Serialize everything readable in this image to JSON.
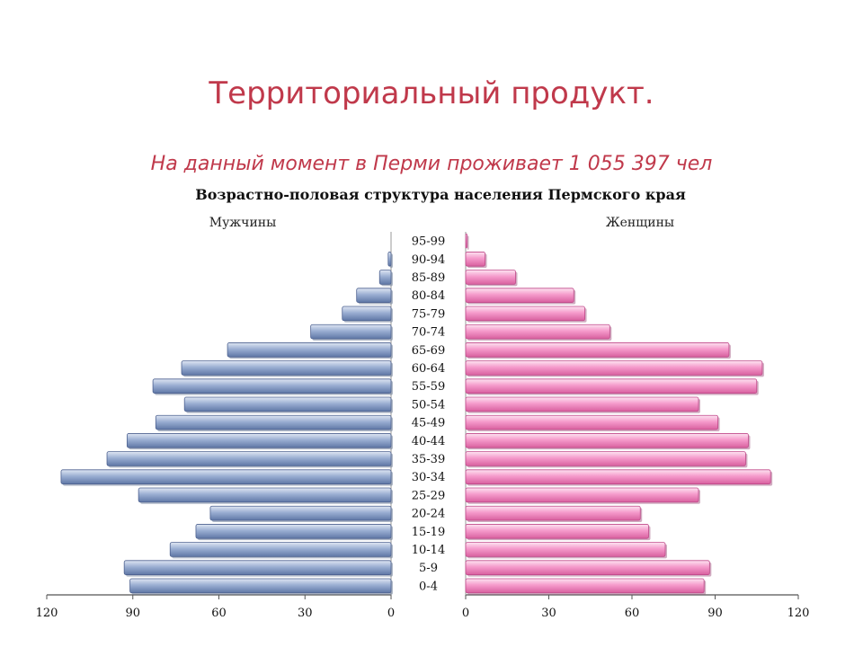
{
  "slide": {
    "title": "Территориальный продукт.",
    "subtitle": "На данный момент в Перми проживает 1 055 397 чел"
  },
  "colors": {
    "title": "#c0394b",
    "male_bar": "#8ea3c8",
    "female_bar": "#f48cc4"
  },
  "chart_data": {
    "type": "bar",
    "orientation": "horizontal-population-pyramid",
    "title": "Возрастно-половая структура населения Пермского края",
    "categories": [
      "0-4",
      "5-9",
      "10-14",
      "15-19",
      "20-24",
      "25-29",
      "30-34",
      "35-39",
      "40-44",
      "45-49",
      "50-54",
      "55-59",
      "60-64",
      "65-69",
      "70-74",
      "75-79",
      "80-84",
      "85-89",
      "90-94",
      "95-99"
    ],
    "series": [
      {
        "name": "Мужчины",
        "side": "left",
        "values": [
          91,
          93,
          77,
          68,
          63,
          88,
          115,
          99,
          92,
          82,
          72,
          83,
          73,
          57,
          28,
          17,
          12,
          4,
          1,
          0
        ]
      },
      {
        "name": "Женщины",
        "side": "right",
        "values": [
          86,
          88,
          72,
          66,
          63,
          84,
          110,
          101,
          102,
          91,
          84,
          105,
          107,
          95,
          52,
          43,
          39,
          18,
          7,
          0.5
        ]
      }
    ],
    "xlim": [
      0,
      120
    ],
    "xticks": [
      "120",
      "90",
      "60",
      "30",
      "0"
    ],
    "xticks_right": [
      "0",
      "30",
      "60",
      "90",
      "120"
    ],
    "grid": false
  }
}
